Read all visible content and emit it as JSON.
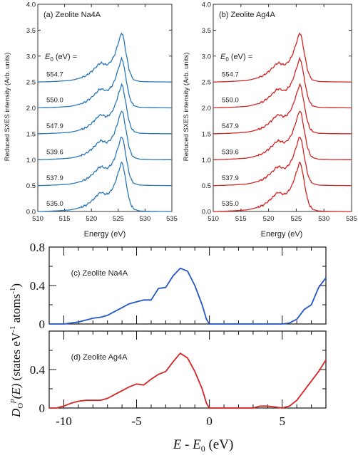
{
  "chart_data": [
    {
      "panel": "a",
      "type": "line",
      "title": "(a) Zeolite Na4A",
      "xlabel": "Energy (eV)",
      "ylabel": "Reduced SXES intensity (Arb. units)",
      "xlim": [
        510,
        535
      ],
      "ylim": [
        0,
        4.0
      ],
      "xticks": [
        510,
        515,
        520,
        525,
        530,
        535
      ],
      "yticks": [
        0.0,
        0.5,
        1.0,
        1.5,
        2.0,
        2.5,
        3.0,
        3.5,
        4.0
      ],
      "legend_header": "E0 (eV) =",
      "color": "#2a78b8",
      "series_shape": {
        "x": [
          510,
          512,
          514,
          516,
          517,
          518,
          519,
          520,
          520.8,
          521.3,
          521.8,
          522.3,
          522.8,
          523.3,
          523.8,
          524.3,
          524.8,
          525.3,
          525.6,
          525.9,
          526.2,
          526.6,
          527,
          527.5,
          528,
          529,
          531,
          535
        ],
        "y": [
          0,
          0.005,
          0.015,
          0.03,
          0.05,
          0.08,
          0.12,
          0.2,
          0.28,
          0.34,
          0.37,
          0.35,
          0.33,
          0.36,
          0.42,
          0.52,
          0.68,
          0.85,
          0.95,
          0.9,
          0.72,
          0.48,
          0.25,
          0.1,
          0.04,
          0.01,
          0.003,
          0
        ]
      },
      "series": [
        {
          "name": "535.0",
          "offset": 0.0
        },
        {
          "name": "537.9",
          "offset": 0.5
        },
        {
          "name": "539.6",
          "offset": 1.0
        },
        {
          "name": "547.9",
          "offset": 1.5
        },
        {
          "name": "550.0",
          "offset": 2.0
        },
        {
          "name": "554.7",
          "offset": 2.5
        }
      ]
    },
    {
      "panel": "b",
      "type": "line",
      "title": "(b) Zeolite Ag4A",
      "xlabel": "Energy (eV)",
      "ylabel": "Reduced SXES intensity (Arb. units)",
      "xlim": [
        510,
        535
      ],
      "ylim": [
        0,
        4.0
      ],
      "xticks": [
        510,
        515,
        520,
        525,
        530,
        535
      ],
      "yticks": [
        0.0,
        0.5,
        1.0,
        1.5,
        2.0,
        2.5,
        3.0,
        3.5,
        4.0
      ],
      "legend_header": "E0 (eV) =",
      "color": "#d42424",
      "series_shape": {
        "x": [
          510,
          512,
          514,
          516,
          517,
          518,
          519,
          520,
          520.8,
          521.3,
          521.8,
          522.3,
          522.8,
          523.3,
          523.8,
          524.3,
          524.8,
          525.3,
          525.6,
          525.9,
          526.2,
          526.6,
          527,
          527.5,
          528,
          529,
          531,
          535
        ],
        "y": [
          0,
          0.005,
          0.015,
          0.03,
          0.05,
          0.08,
          0.12,
          0.2,
          0.28,
          0.34,
          0.37,
          0.35,
          0.33,
          0.36,
          0.42,
          0.52,
          0.68,
          0.85,
          0.95,
          0.9,
          0.72,
          0.48,
          0.25,
          0.1,
          0.04,
          0.01,
          0.003,
          0
        ]
      },
      "series": [
        {
          "name": "535.0",
          "offset": 0.0
        },
        {
          "name": "537.9",
          "offset": 0.5
        },
        {
          "name": "539.6",
          "offset": 1.0
        },
        {
          "name": "547.9",
          "offset": 1.5
        },
        {
          "name": "550.0",
          "offset": 2.0
        },
        {
          "name": "554.7",
          "offset": 2.5
        }
      ]
    },
    {
      "panel": "c",
      "type": "line",
      "title": "(c) Zeolite Na4A",
      "xlim": [
        -11,
        8
      ],
      "ylim": [
        0,
        0.8
      ],
      "yticks": [
        0,
        0.4,
        0.8
      ],
      "color": "#2356c8",
      "x": [
        -11,
        -10,
        -9,
        -8.5,
        -8,
        -7.5,
        -7,
        -6.5,
        -6,
        -5.5,
        -5,
        -4.5,
        -4,
        -3.5,
        -3,
        -2.5,
        -2,
        -1.5,
        -1,
        -0.5,
        -0.2,
        0,
        0.5,
        1,
        2,
        3,
        4,
        5,
        5.5,
        6,
        6.5,
        7,
        7.5,
        8
      ],
      "y": [
        0,
        0,
        0.02,
        0.04,
        0.06,
        0.07,
        0.09,
        0.13,
        0.17,
        0.21,
        0.23,
        0.25,
        0.25,
        0.37,
        0.38,
        0.5,
        0.58,
        0.55,
        0.4,
        0.2,
        0.05,
        0,
        0,
        0,
        0,
        0,
        0,
        0,
        0.01,
        0.05,
        0.15,
        0.2,
        0.38,
        0.48
      ]
    },
    {
      "panel": "d",
      "type": "line",
      "title": "(d) Zeolite Ag4A",
      "xlabel": "E - E0 (eV)",
      "ylabel": "DO^p(E) (states eV^-1 atoms^-1)",
      "xlim": [
        -11,
        8
      ],
      "ylim": [
        0,
        0.8
      ],
      "yticks": [
        0,
        0.4
      ],
      "xticks": [
        -10,
        -5,
        0,
        5
      ],
      "color": "#d42424",
      "x": [
        -11,
        -10.5,
        -10,
        -9.5,
        -9,
        -8.5,
        -8,
        -7.5,
        -7,
        -6.5,
        -6,
        -5.5,
        -5,
        -4.5,
        -4,
        -3.5,
        -3,
        -2.5,
        -2,
        -1.5,
        -1,
        -0.5,
        -0.2,
        0,
        0.5,
        1,
        2,
        3,
        3.5,
        4,
        4.5,
        5,
        5.5,
        6,
        6.5,
        7,
        7.5,
        8
      ],
      "y": [
        0,
        0,
        0.02,
        0.05,
        0.07,
        0.08,
        0.08,
        0.08,
        0.1,
        0.14,
        0.18,
        0.22,
        0.25,
        0.24,
        0.3,
        0.35,
        0.38,
        0.48,
        0.57,
        0.52,
        0.38,
        0.2,
        0.05,
        0,
        0,
        0,
        0,
        0,
        0.02,
        0.02,
        0.01,
        0,
        0.02,
        0.08,
        0.18,
        0.28,
        0.38,
        0.5
      ]
    }
  ],
  "labels": {
    "a_title": "(a) Zeolite Na4A",
    "b_title": "(b) Zeolite Ag4A",
    "c_title": "(c) Zeolite Na4A",
    "d_title": "(d) Zeolite Ag4A",
    "top_xlabel": "Energy  (eV)",
    "top_ylabel": "Reduced SXES intensity (Arb. units)",
    "e0_header_sym": "E",
    "e0_header_sub": "0",
    "e0_header_rest": " (eV) =",
    "bottom_xlabel_E": "E",
    "bottom_xlabel_mid": " - ",
    "bottom_xlabel_E0": "E",
    "bottom_xlabel_sub": "0",
    "bottom_xlabel_unit": " (eV)",
    "dos_D": "D",
    "dos_sub": "O",
    "dos_sup": "p",
    "dos_arg": "(E)",
    "dos_unit": " (states eV",
    "dos_unit_exp": "-1",
    "dos_unit2": " atoms",
    "dos_unit2_exp": "-1",
    "dos_close": ")"
  }
}
